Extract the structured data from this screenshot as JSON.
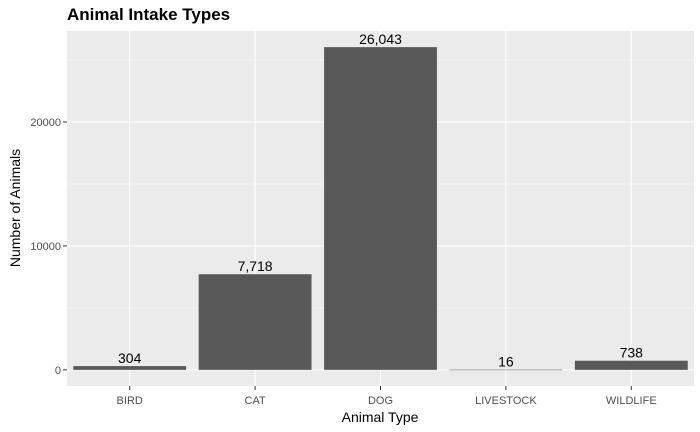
{
  "chart_data": {
    "type": "bar",
    "title": "Animal Intake Types",
    "xlabel": "Animal Type",
    "ylabel": "Number of Animals",
    "categories": [
      "BIRD",
      "CAT",
      "DOG",
      "LIVESTOCK",
      "WILDLIFE"
    ],
    "values": [
      304,
      7718,
      26043,
      16,
      738
    ],
    "data_labels": [
      "304",
      "7,718",
      "26,043",
      "16",
      "738"
    ],
    "yticks": [
      0,
      10000,
      20000
    ],
    "ytick_labels": [
      "0",
      "10000",
      "20000"
    ],
    "ylim": [
      -1302,
      27345
    ],
    "grid": true,
    "legend": "none",
    "colors": {
      "bar": "#595959",
      "panel_bg": "#ebebeb",
      "grid_major": "#ffffff",
      "tick_text": "#4d4d4d"
    }
  }
}
